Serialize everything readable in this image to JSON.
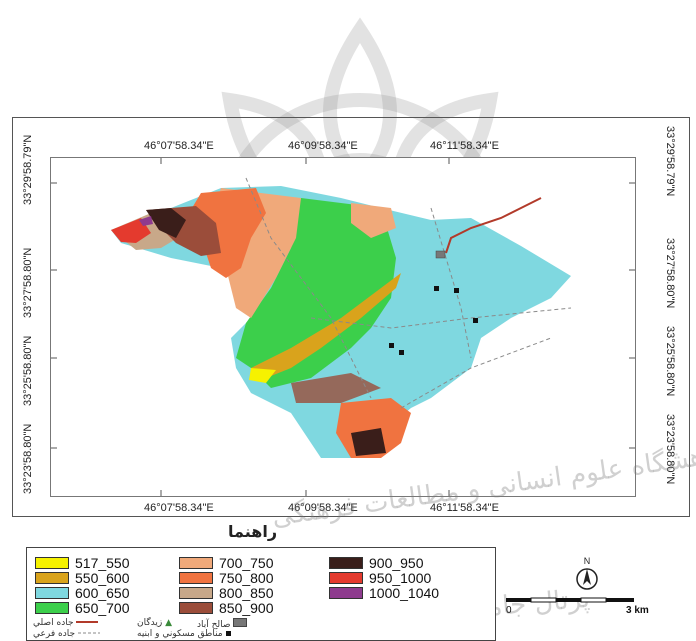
{
  "map": {
    "top_coords": [
      "46°07'58.34\"E",
      "46°09'58.34\"E",
      "46°11'58.34\"E"
    ],
    "bottom_coords": [
      "46°07'58.34\"E",
      "46°09'58.34\"E",
      "46°11'58.34\"E"
    ],
    "left_coords": [
      "33°29'58.79\"N",
      "33°27'58.80\"N",
      "33°25'58.80\"N",
      "33°23'58.80\"N"
    ],
    "right_coords": [
      "33°29'58.79\"N",
      "33°27'58.80\"N",
      "33°25'58.80\"N",
      "33°23'58.80\"N"
    ]
  },
  "legend": {
    "title": "راهنما",
    "classes": [
      {
        "label": "517_550",
        "color": "#f6f200"
      },
      {
        "label": "550_600",
        "color": "#d9a31c"
      },
      {
        "label": "600_650",
        "color": "#7fd8e0"
      },
      {
        "label": "650_700",
        "color": "#3ccf4b"
      },
      {
        "label": "700_750",
        "color": "#f0a97a"
      },
      {
        "label": "750_800",
        "color": "#f07340"
      },
      {
        "label": "800_850",
        "color": "#c8a889"
      },
      {
        "label": "850_900",
        "color": "#9b4d3a"
      },
      {
        "label": "900_950",
        "color": "#3a1e1a"
      },
      {
        "label": "950_1000",
        "color": "#e43a2e"
      },
      {
        "label": "1000_1040",
        "color": "#8e3b8e"
      }
    ],
    "symbols": {
      "main_road": "جاده اصلي",
      "sub_road": "جاده فرعي",
      "water_pit": "زيدگان",
      "village": "صالح آباد",
      "residential": "مناطق مسكوني و ابنيه"
    }
  },
  "north_label": "N",
  "scale": {
    "start": "0",
    "end": "3 km"
  },
  "watermark": {
    "line1": "پژوهشگاه علوم انسانی و مطالعات فرهنگی",
    "line2": "پرتال جامع علوم انسانی"
  },
  "colors": {
    "frame": "#555555",
    "road_main": "#b23a2a",
    "road_sub": "#8a8a8a"
  }
}
